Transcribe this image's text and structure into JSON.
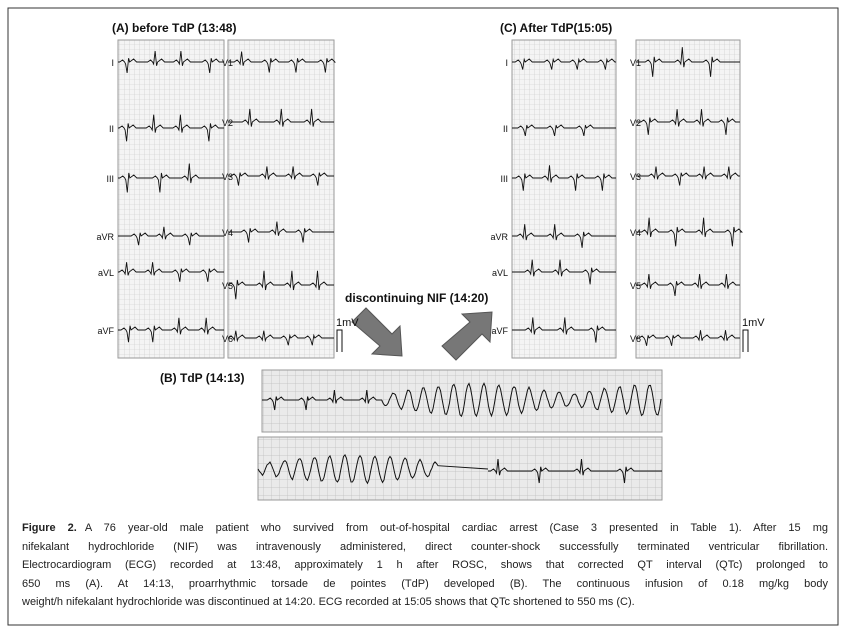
{
  "panels": {
    "a": {
      "title": "(A) before TdP (13:48)",
      "limb_leads": [
        "I",
        "II",
        "III",
        "aVR",
        "aVL",
        "aVF"
      ],
      "chest_leads": [
        "V1",
        "V2",
        "V3",
        "V4",
        "V5",
        "V6"
      ],
      "calibration": "1mV"
    },
    "c": {
      "title": "(C) After TdP(15:05)",
      "limb_leads": [
        "I",
        "II",
        "III",
        "aVR",
        "aVL",
        "aVF"
      ],
      "chest_leads": [
        "V1",
        "V2",
        "V3",
        "V4",
        "V5",
        "V6"
      ],
      "calibration": "1mV"
    },
    "b": {
      "title": "(B) TdP (14:13)"
    }
  },
  "arrow_label": "discontinuing NIF (14:20)",
  "caption": {
    "label": "Figure 2.",
    "lines": [
      "A 76 year-old male patient who survived from out-of-hospital cardiac arrest (Case 3 presented in Table 1). After 15 mg",
      "nifekalant hydrochloride (NIF) was intravenously administered, direct counter-shock successfully terminated ventricular fibrillation.",
      "Electrocardiogram (ECG) recorded at 13:48, approximately 1 h after ROSC, shows that corrected QT interval (QTc) prolonged to",
      "650 ms (A). At 14:13, proarrhythmic torsade de pointes (TdP) developed (B). The continuous infusion of 0.18 mg/kg body",
      "weight/h nifekalant hydrochloride was discontinued at 14:20. ECG recorded at 15:05 shows that QTc shortened to 550 ms (C)."
    ]
  }
}
